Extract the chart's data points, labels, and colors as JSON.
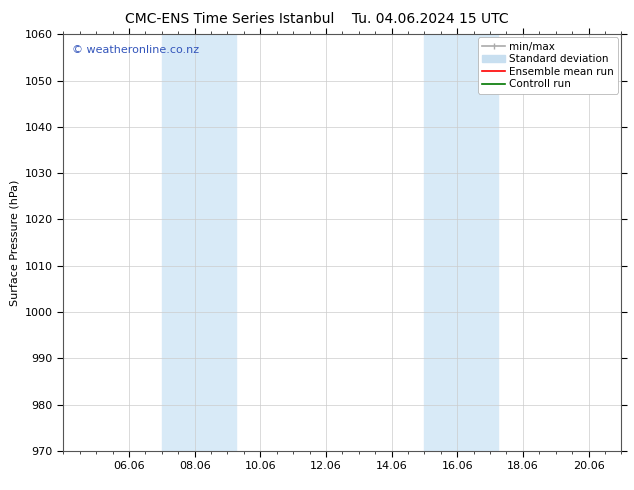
{
  "title_left": "CMC-ENS Time Series Istanbul",
  "title_right": "Tu. 04.06.2024 15 UTC",
  "ylabel": "Surface Pressure (hPa)",
  "ylim": [
    970,
    1060
  ],
  "yticks": [
    970,
    980,
    990,
    1000,
    1010,
    1020,
    1030,
    1040,
    1050,
    1060
  ],
  "x_tick_labels": [
    "06.06",
    "08.06",
    "10.06",
    "12.06",
    "14.06",
    "16.06",
    "18.06",
    "20.06"
  ],
  "x_tick_positions": [
    2,
    4,
    6,
    8,
    10,
    12,
    14,
    16
  ],
  "xlim": [
    0,
    17
  ],
  "shaded_regions": [
    {
      "x_start": 3.0,
      "x_end": 5.25,
      "color": "#d8eaf7"
    },
    {
      "x_start": 11.0,
      "x_end": 13.25,
      "color": "#d8eaf7"
    }
  ],
  "background_color": "#ffffff",
  "plot_bg_color": "#ffffff",
  "watermark": "© weatheronline.co.nz",
  "watermark_color": "#3355bb",
  "watermark_fontsize": 8,
  "legend_items": [
    {
      "label": "min/max",
      "color": "#aaaaaa",
      "lw": 1.2
    },
    {
      "label": "Standard deviation",
      "color": "#c8dff0",
      "lw": 8
    },
    {
      "label": "Ensemble mean run",
      "color": "#ff0000",
      "lw": 1.2
    },
    {
      "label": "Controll run",
      "color": "#007700",
      "lw": 1.2
    }
  ],
  "grid_color": "#cccccc",
  "title_fontsize": 10,
  "axis_fontsize": 8,
  "tick_fontsize": 8,
  "legend_fontsize": 7.5
}
